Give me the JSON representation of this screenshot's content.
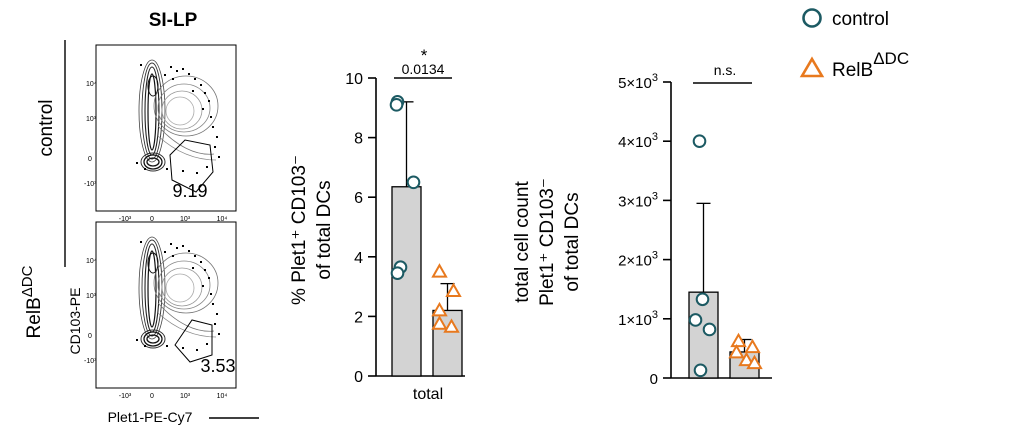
{
  "figure": {
    "flow_panel": {
      "title": "SI-LP",
      "row_labels": [
        "control",
        "RelB"
      ],
      "row_label_superscript": "ΔDC",
      "x_axis_label": "Plet1-PE-Cy7",
      "y_axis_label": "CD103-PE",
      "gate_values": [
        "9.19",
        "3.53"
      ],
      "x_tick_labels": [
        "-10³",
        "0",
        "10³",
        "10⁴"
      ],
      "y_tick_labels": [
        "10⁴",
        "10³",
        "0",
        "-10³"
      ]
    },
    "legend": {
      "items": [
        {
          "label": "control",
          "marker": "circle",
          "color": "#1c5a63"
        },
        {
          "label": "RelB",
          "superscript": "ΔDC",
          "marker": "triangle",
          "color": "#e8791e"
        }
      ]
    }
  },
  "chart_data": [
    {
      "type": "bar",
      "id": "percent_chart",
      "categories": [
        "total"
      ],
      "ylabel_lines": [
        "% Plet1⁺ CD103⁻",
        "of total DCs"
      ],
      "ylim": [
        0,
        10
      ],
      "y_ticks": [
        0,
        2,
        4,
        6,
        8,
        10
      ],
      "y_tick_labels": [
        "0",
        "2",
        "4",
        "6",
        "8",
        "10"
      ],
      "bar_color": "#d3d3d3",
      "series": [
        {
          "name": "control",
          "mean": 6.35,
          "err_upper": 9.2,
          "points": [
            9.2,
            9.1,
            6.5,
            3.65,
            3.45
          ],
          "color": "#1c5a63",
          "marker": "circle"
        },
        {
          "name": "RelB ΔDC",
          "mean": 2.2,
          "err_upper": 3.1,
          "points": [
            3.5,
            2.85,
            2.2,
            1.75,
            1.65
          ],
          "color": "#e8791e",
          "marker": "triangle"
        }
      ],
      "significance": {
        "stars": "*",
        "p_value": "0.0134"
      }
    },
    {
      "type": "bar",
      "id": "count_chart",
      "categories": [
        ""
      ],
      "ylabel_lines": [
        "total cell count",
        "Plet1⁺ CD103⁻",
        "of total DCs"
      ],
      "ylim": [
        0,
        5000
      ],
      "y_ticks": [
        0,
        1000,
        2000,
        3000,
        4000,
        5000
      ],
      "y_tick_labels": [
        "0",
        "1×10³",
        "2×10³",
        "3×10³",
        "4×10³",
        "5×10³"
      ],
      "bar_color": "#d3d3d3",
      "series": [
        {
          "name": "control",
          "mean": 1450,
          "err_upper": 2950,
          "points": [
            4000,
            1330,
            980,
            820,
            130
          ],
          "color": "#1c5a63",
          "marker": "circle"
        },
        {
          "name": "RelB ΔDC",
          "mean": 440,
          "err_upper": 650,
          "points": [
            620,
            520,
            430,
            300,
            250
          ],
          "color": "#e8791e",
          "marker": "triangle"
        }
      ],
      "significance": {
        "label": "n.s."
      }
    }
  ]
}
